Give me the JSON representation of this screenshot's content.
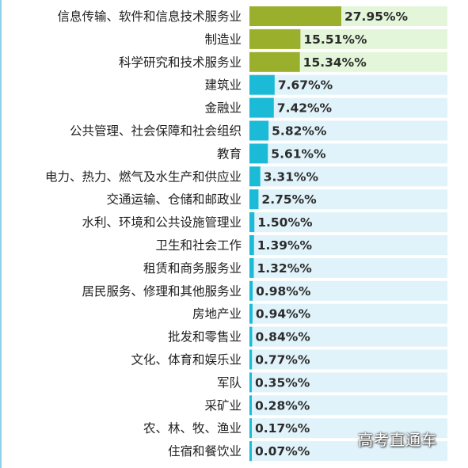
{
  "chart_data": {
    "type": "bar",
    "orientation": "horizontal",
    "categories": [
      "信息传输、软件和信息技术服务业",
      "制造业",
      "科学研究和技术服务业",
      "建筑业",
      "金融业",
      "公共管理、社会保障和社会组织",
      "教育",
      "电力、热力、燃气及水生产和供应业",
      "交通运输、仓储和邮政业",
      "水利、环境和公共设施管理业",
      "卫生和社会工作",
      "租赁和商务服务业",
      "居民服务、修理和其他服务业",
      "房地产业",
      "批发和零售业",
      "文化、体育和娱乐业",
      "军队",
      "采矿业",
      "农、林、牧、渔业",
      "住宿和餐饮业"
    ],
    "values": [
      27.95,
      15.51,
      15.34,
      7.67,
      7.42,
      5.82,
      5.61,
      3.31,
      2.75,
      1.5,
      1.39,
      1.32,
      0.98,
      0.94,
      0.84,
      0.77,
      0.35,
      0.28,
      0.17,
      0.07
    ],
    "value_labels": [
      "27.95%%",
      "15.51%%",
      "15.34%%",
      "7.67%%",
      "7.42%%",
      "5.82%%",
      "5.61%%",
      "3.31%%",
      "2.75%%",
      "1.50%%",
      "1.39%%",
      "1.32%%",
      "0.98%%",
      "0.94%%",
      "0.84%%",
      "0.77%%",
      "0.35%%",
      "0.28%%",
      "0.17%%",
      "0.07%%"
    ],
    "xlim": [
      0,
      62
    ],
    "highlighted_count": 3,
    "colors": {
      "highlight_bar": "#9aaf2c",
      "highlight_track": "#e3f6d9",
      "normal_bar": "#1bbbd8",
      "normal_track": "#e1f3fa"
    }
  },
  "watermark": "高考直通车"
}
